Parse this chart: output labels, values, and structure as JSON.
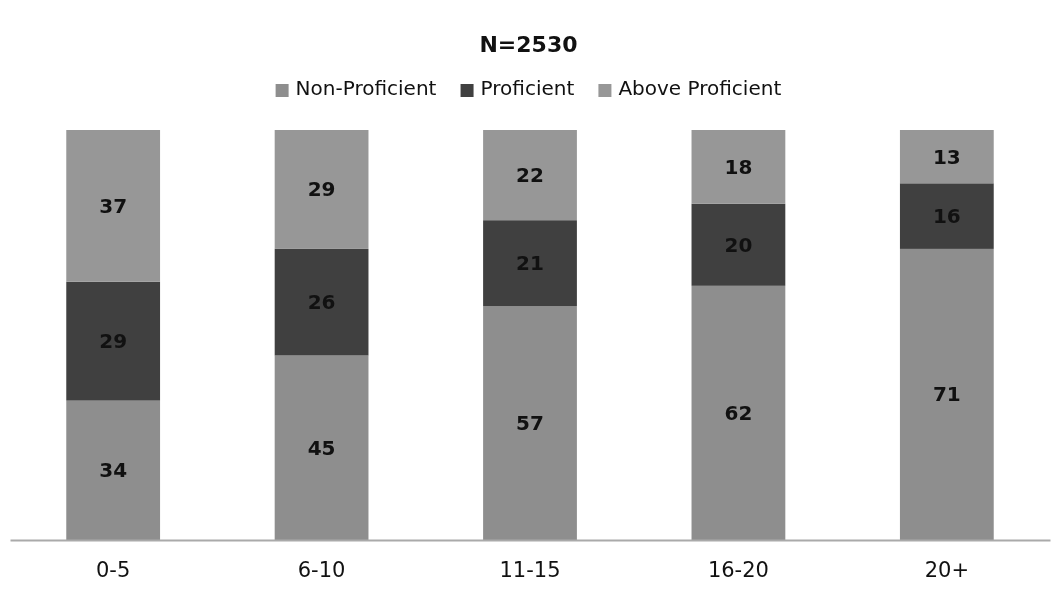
{
  "chart_data": {
    "type": "bar",
    "title": "N=2530",
    "stacked": true,
    "data_labels": true,
    "legend": "top",
    "categories": [
      "0-5",
      "6-10",
      "11-15",
      "16-20",
      "20+"
    ],
    "series": [
      {
        "name": "Non-Proficient",
        "color": "#8e8e8e",
        "values": [
          34,
          45,
          57,
          62,
          71
        ]
      },
      {
        "name": "Proficient",
        "color": "#404040",
        "values": [
          29,
          26,
          21,
          20,
          16
        ]
      },
      {
        "name": "Above Proficient",
        "color": "#979797",
        "values": [
          37,
          29,
          22,
          18,
          13
        ]
      }
    ]
  }
}
